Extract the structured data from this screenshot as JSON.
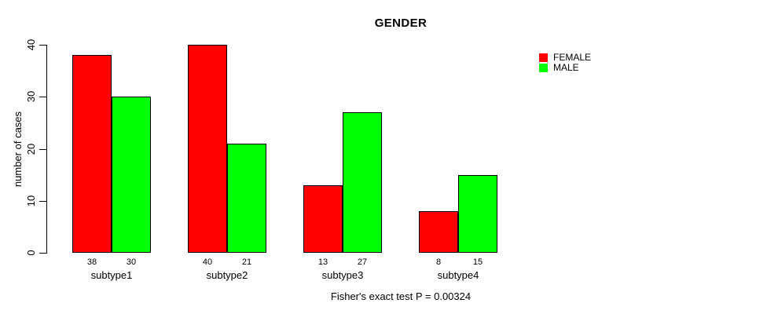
{
  "chart_data": {
    "type": "bar",
    "title": "GENDER",
    "ylabel": "number of cases",
    "xlabel": "",
    "caption": "Fisher's exact test P = 0.00324",
    "categories": [
      "subtype1",
      "subtype2",
      "subtype3",
      "subtype4"
    ],
    "series": [
      {
        "name": "FEMALE",
        "color": "#ff0000",
        "values": [
          38,
          40,
          13,
          8
        ]
      },
      {
        "name": "MALE",
        "color": "#00ff00",
        "values": [
          30,
          21,
          27,
          15
        ]
      }
    ],
    "yticks": [
      0,
      10,
      20,
      30,
      40
    ],
    "ylim": [
      0,
      40
    ],
    "bar_value_labels_shown": true,
    "legend_position": "top-right",
    "grid": false,
    "background_color": "#ffffff",
    "bar_border_color": "#000000"
  }
}
